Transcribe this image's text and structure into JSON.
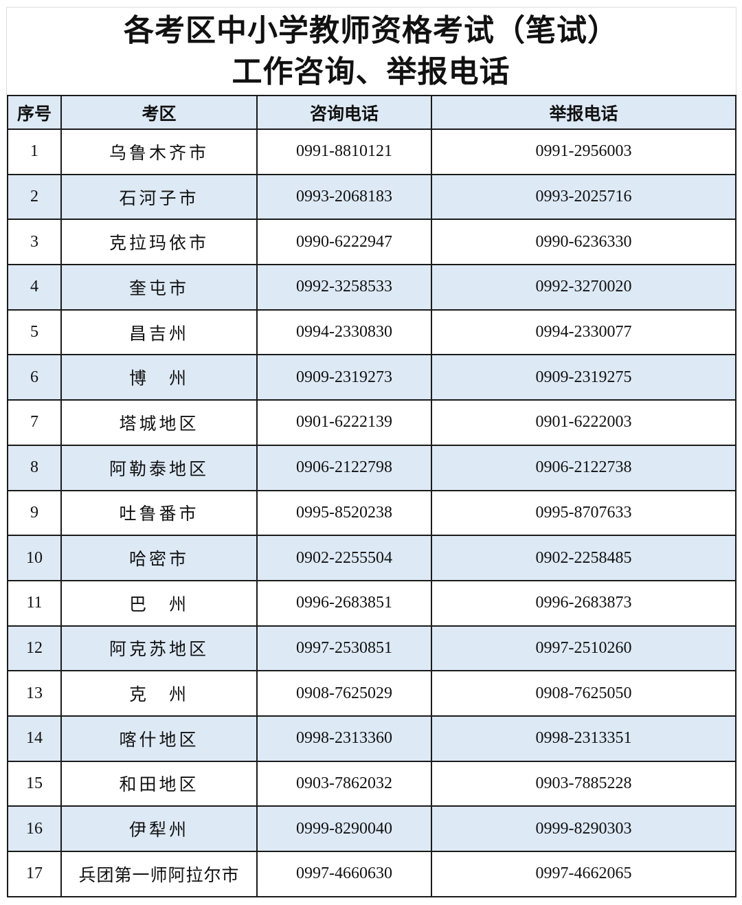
{
  "title": {
    "line1": "各考区中小学教师资格考试（笔试）",
    "line2": "工作咨询、举报电话"
  },
  "colors": {
    "header_bg": "#dde9f5",
    "alt_row_bg": "#dde9f5",
    "border": "#1a1a1a"
  },
  "table": {
    "headers": [
      "序号",
      "考区",
      "咨询电话",
      "举报电话"
    ],
    "rows": [
      [
        "1",
        "乌鲁木齐市",
        "0991-8810121",
        "0991-2956003"
      ],
      [
        "2",
        "石河子市",
        "0993-2068183",
        "0993-2025716"
      ],
      [
        "3",
        "克拉玛依市",
        "0990-6222947",
        "0990-6236330"
      ],
      [
        "4",
        "奎屯市",
        "0992-3258533",
        "0992-3270020"
      ],
      [
        "5",
        "昌吉州",
        "0994-2330830",
        "0994-2330077"
      ],
      [
        "6",
        "博　州",
        "0909-2319273",
        "0909-2319275"
      ],
      [
        "7",
        "塔城地区",
        "0901-6222139",
        "0901-6222003"
      ],
      [
        "8",
        "阿勒泰地区",
        "0906-2122798",
        "0906-2122738"
      ],
      [
        "9",
        "吐鲁番市",
        "0995-8520238",
        "0995-8707633"
      ],
      [
        "10",
        "哈密市",
        "0902-2255504",
        "0902-2258485"
      ],
      [
        "11",
        "巴　州",
        "0996-2683851",
        "0996-2683873"
      ],
      [
        "12",
        "阿克苏地区",
        "0997-2530851",
        "0997-2510260"
      ],
      [
        "13",
        "克　州",
        "0908-7625029",
        "0908-7625050"
      ],
      [
        "14",
        "喀什地区",
        "0998-2313360",
        "0998-2313351"
      ],
      [
        "15",
        "和田地区",
        "0903-7862032",
        "0903-7885228"
      ],
      [
        "16",
        "伊犁州",
        "0999-8290040",
        "0999-8290303"
      ],
      [
        "17",
        "兵团第一师阿拉尔市",
        "0997-4660630",
        "0997-4662065"
      ]
    ]
  }
}
